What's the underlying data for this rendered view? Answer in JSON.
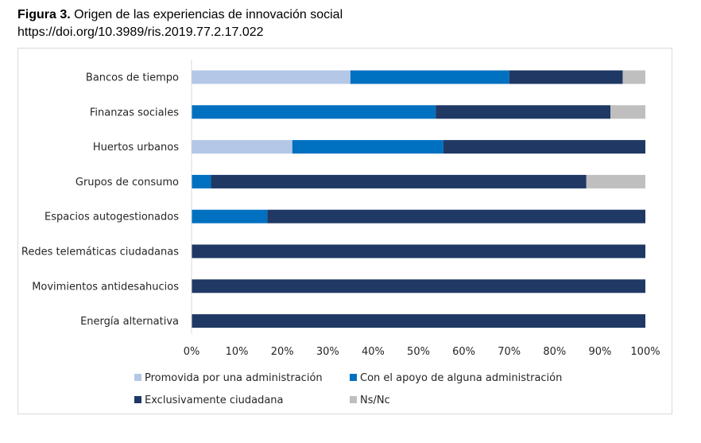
{
  "caption": {
    "lead": "Figura 3.",
    "title": "Origen de las experiencias de innovación social",
    "doi": "https://doi.org/10.3989/ris.2019.77.2.17.022"
  },
  "chart_data": {
    "type": "bar",
    "orientation": "horizontal",
    "stacked": "percent",
    "title": "",
    "xlabel": "",
    "ylabel": "",
    "xlim": [
      0,
      100
    ],
    "x_ticks": [
      "0%",
      "10%",
      "20%",
      "30%",
      "40%",
      "50%",
      "60%",
      "70%",
      "80%",
      "90%",
      "100%"
    ],
    "categories": [
      "Bancos de tiempo",
      "Finanzas sociales",
      "Huertos urbanos",
      "Grupos de consumo",
      "Espacios autogestionados",
      "Redes telemáticas ciudadanas",
      "Movimientos antidesahucios",
      "Energía alternativa"
    ],
    "series": [
      {
        "name": "Promovida por una administración",
        "color": "#b4c7e7",
        "values": [
          35,
          0,
          22.2,
          0,
          0,
          0,
          0,
          0
        ]
      },
      {
        "name": "Con el apoyo de alguna administración",
        "color": "#0070c0",
        "values": [
          35,
          53.8,
          33.3,
          4.3,
          16.7,
          0,
          0,
          0
        ]
      },
      {
        "name": "Exclusivamente ciudadana",
        "color": "#1f3864",
        "values": [
          25,
          38.5,
          44.5,
          82.7,
          83.3,
          100,
          100,
          100
        ]
      },
      {
        "name": "Ns/Nc",
        "color": "#bfbfbf",
        "values": [
          5,
          7.7,
          0,
          13,
          0,
          0,
          0,
          0
        ]
      }
    ],
    "grid": false,
    "legend_position": "bottom"
  }
}
